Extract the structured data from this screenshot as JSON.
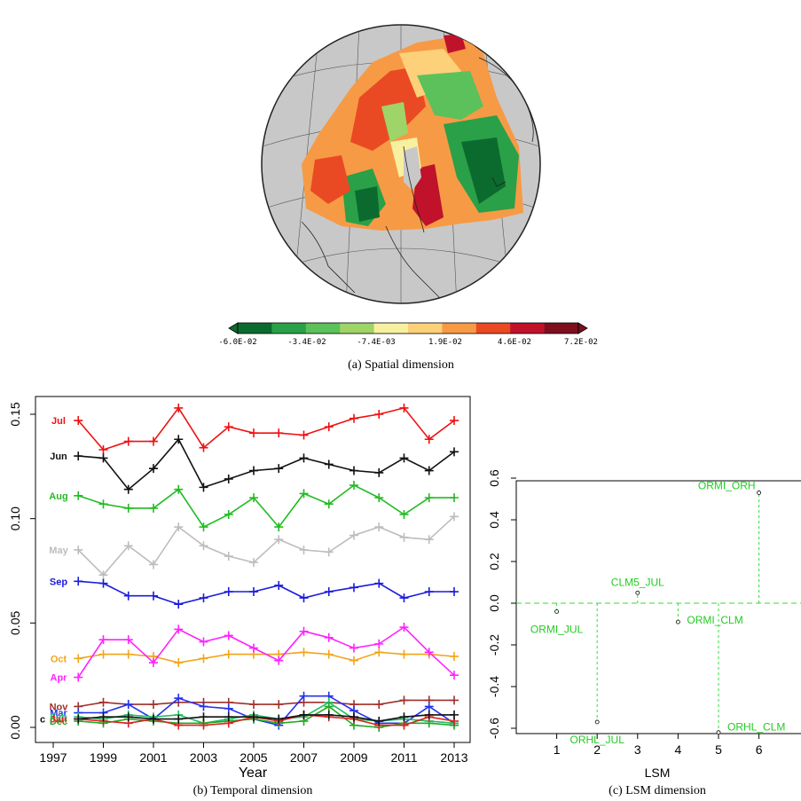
{
  "captions": {
    "a": "(a) Spatial dimension",
    "b": "(b) Temporal dimension",
    "c": "(c) LSM dimension"
  },
  "colorbar": {
    "colors": [
      "#0b6b2e",
      "#2aa048",
      "#5cc15a",
      "#9ed468",
      "#f7f0a0",
      "#fdd07a",
      "#f79a45",
      "#ea4a23",
      "#c0122a",
      "#7d0f1f"
    ],
    "tick_labels": [
      "-6.0E-02",
      "-3.4E-02",
      "-7.4E-03",
      "1.9E-02",
      "4.6E-02",
      "7.2E-02"
    ]
  },
  "chart_data": [
    {
      "type": "line",
      "panel": "b",
      "xlabel": "Year",
      "x": [
        1998,
        1999,
        2000,
        2001,
        2002,
        2003,
        2004,
        2005,
        2006,
        2007,
        2008,
        2009,
        2010,
        2011,
        2012,
        2013
      ],
      "xlim": [
        1997,
        2013
      ],
      "ylim": [
        -0.005,
        0.158
      ],
      "xticks": [
        1997,
        1999,
        2001,
        2003,
        2005,
        2007,
        2009,
        2011,
        2013
      ],
      "yticks": [
        "0.00",
        "0.05",
        "0.10",
        "0.15"
      ],
      "series": [
        {
          "name": "Jul",
          "color": "#ee1111",
          "values": [
            0.147,
            0.133,
            0.137,
            0.137,
            0.153,
            0.134,
            0.144,
            0.141,
            0.141,
            0.14,
            0.144,
            0.148,
            0.15,
            0.153,
            0.138,
            0.147
          ]
        },
        {
          "name": "Jun",
          "color": "#111111",
          "values": [
            0.13,
            0.129,
            0.114,
            0.124,
            0.138,
            0.115,
            0.119,
            0.123,
            0.124,
            0.129,
            0.126,
            0.123,
            0.122,
            0.129,
            0.123,
            0.132
          ]
        },
        {
          "name": "Aug",
          "color": "#22bb22",
          "values": [
            0.111,
            0.107,
            0.105,
            0.105,
            0.114,
            0.096,
            0.102,
            0.11,
            0.096,
            0.112,
            0.107,
            0.116,
            0.11,
            0.102,
            0.11,
            0.11
          ]
        },
        {
          "name": "May",
          "color": "#bdbdbd",
          "values": [
            0.085,
            0.073,
            0.087,
            0.078,
            0.096,
            0.087,
            0.082,
            0.079,
            0.09,
            0.085,
            0.084,
            0.092,
            0.096,
            0.091,
            0.09,
            0.101
          ]
        },
        {
          "name": "Sep",
          "color": "#1a1add",
          "values": [
            0.07,
            0.069,
            0.063,
            0.063,
            0.059,
            0.062,
            0.065,
            0.065,
            0.068,
            0.062,
            0.065,
            0.067,
            0.069,
            0.062,
            0.065,
            0.065
          ]
        },
        {
          "name": "Oct",
          "color": "#f2a51a",
          "values": [
            0.033,
            0.035,
            0.035,
            0.034,
            0.031,
            0.033,
            0.035,
            0.035,
            0.035,
            0.036,
            0.035,
            0.032,
            0.036,
            0.035,
            0.035,
            0.034
          ]
        },
        {
          "name": "Apr",
          "color": "#ff22ff",
          "values": [
            0.024,
            0.042,
            0.042,
            0.031,
            0.047,
            0.041,
            0.044,
            0.038,
            0.032,
            0.046,
            0.043,
            0.038,
            0.04,
            0.048,
            0.036,
            0.025
          ]
        },
        {
          "name": "Nov",
          "color": "#a0302a",
          "values": [
            0.01,
            0.012,
            0.011,
            0.011,
            0.012,
            0.012,
            0.012,
            0.011,
            0.011,
            0.012,
            0.012,
            0.011,
            0.011,
            0.013,
            0.013,
            0.013
          ]
        },
        {
          "name": "Mar",
          "color": "#2233ee",
          "values": [
            0.007,
            0.007,
            0.011,
            0.004,
            0.014,
            0.01,
            0.009,
            0.004,
            0.001,
            0.015,
            0.015,
            0.008,
            0.002,
            0.002,
            0.01,
            0.002
          ]
        },
        {
          "name": "Feb",
          "color": "#22bb66",
          "values": [
            0.005,
            0.004,
            0.006,
            0.005,
            0.006,
            0.002,
            0.004,
            0.006,
            0.004,
            0.005,
            0.012,
            0.004,
            0.003,
            0.004,
            0.003,
            0.002
          ]
        },
        {
          "name": "Dec",
          "color": "#22aa22",
          "values": [
            0.003,
            0.002,
            0.004,
            0.003,
            0.002,
            0.002,
            0.003,
            0.004,
            0.002,
            0.003,
            0.01,
            0.001,
            0.0,
            0.002,
            0.002,
            0.001
          ]
        },
        {
          "name": "Jan",
          "color": "#dd2222",
          "values": [
            0.004,
            0.003,
            0.002,
            0.004,
            0.001,
            0.001,
            0.002,
            0.005,
            0.003,
            0.006,
            0.005,
            0.004,
            0.001,
            0.001,
            0.005,
            0.003
          ]
        },
        {
          "name": "c",
          "color": "#111111",
          "values": [
            0.004,
            0.005,
            0.005,
            0.004,
            0.004,
            0.005,
            0.005,
            0.005,
            0.004,
            0.006,
            0.006,
            0.005,
            0.003,
            0.005,
            0.006,
            0.006
          ]
        }
      ]
    },
    {
      "type": "scatter",
      "panel": "c",
      "xlabel": "LSM",
      "xticks": [
        "1",
        "2",
        "3",
        "4",
        "5",
        "6"
      ],
      "yticks": [
        "-0.6",
        "-0.4",
        "-0.2",
        "0.0",
        "0.2",
        "0.4",
        "0.6"
      ],
      "xlim": [
        0,
        7
      ],
      "ylim": [
        -0.68,
        0.68
      ],
      "points": [
        {
          "label": "ORMI_JUL",
          "x": 1,
          "y": -0.04
        },
        {
          "label": "ORHL_JUL",
          "x": 2,
          "y": -0.57
        },
        {
          "label": "CLM5_JUL",
          "x": 3,
          "y": 0.05
        },
        {
          "label": "ORMI_CLM",
          "x": 4,
          "y": -0.09
        },
        {
          "label": "ORHL_CLM",
          "x": 5,
          "y": -0.62
        },
        {
          "label": "ORMI_ORH",
          "x": 6,
          "y": 0.53
        }
      ]
    }
  ]
}
